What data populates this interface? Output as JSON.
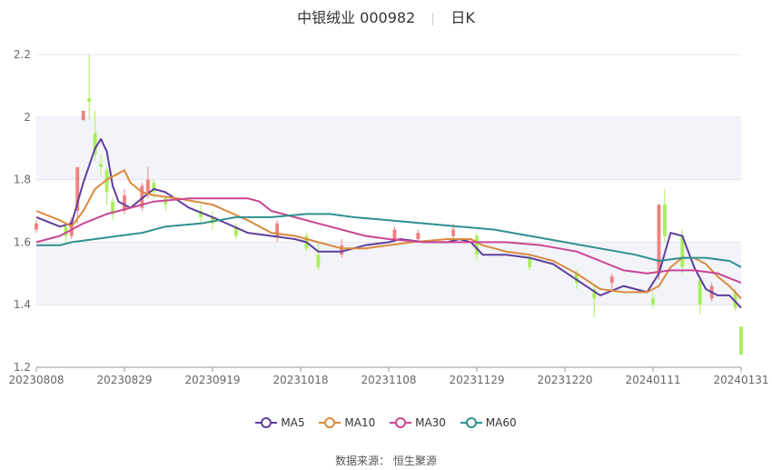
{
  "title": {
    "name": "中银绒业 000982",
    "period": "日K"
  },
  "source": "数据来源： 恒生聚源",
  "colors": {
    "up": "#f08080",
    "down": "#a8ef5c",
    "grid_band": "#f3f4fa"
  },
  "chart_data": {
    "type": "candlestick",
    "x_ticks": [
      "20230808",
      "20230829",
      "20230919",
      "20231018",
      "20231108",
      "20231129",
      "20231220",
      "20240111",
      "20240131"
    ],
    "ylim": [
      1.2,
      2.2
    ],
    "y_ticks": [
      1.2,
      1.4,
      1.6,
      1.8,
      2.0,
      2.2
    ],
    "y_tick_labels": [
      "1.2",
      "1.4",
      "1.6",
      "1.8",
      "2",
      "2.2"
    ],
    "n": 121,
    "candles_approx": [
      {
        "i": 0,
        "o": 1.64,
        "c": 1.66,
        "h": 1.67,
        "l": 1.63
      },
      {
        "i": 5,
        "o": 1.65,
        "c": 1.62,
        "h": 1.66,
        "l": 1.6
      },
      {
        "i": 6,
        "o": 1.62,
        "c": 1.67,
        "h": 1.68,
        "l": 1.61
      },
      {
        "i": 7,
        "o": 1.7,
        "c": 1.84,
        "h": 1.84,
        "l": 1.66
      },
      {
        "i": 8,
        "o": 1.99,
        "c": 2.02,
        "h": 2.02,
        "l": 1.99
      },
      {
        "i": 9,
        "o": 2.06,
        "c": 2.05,
        "h": 2.2,
        "l": 1.99
      },
      {
        "i": 10,
        "o": 1.95,
        "c": 1.88,
        "h": 2.02,
        "l": 1.86
      },
      {
        "i": 11,
        "o": 1.85,
        "c": 1.84,
        "h": 1.88,
        "l": 1.81
      },
      {
        "i": 12,
        "o": 1.83,
        "c": 1.76,
        "h": 1.84,
        "l": 1.72
      },
      {
        "i": 13,
        "o": 1.73,
        "c": 1.69,
        "h": 1.74,
        "l": 1.67
      },
      {
        "i": 15,
        "o": 1.7,
        "c": 1.75,
        "h": 1.77,
        "l": 1.69
      },
      {
        "i": 18,
        "o": 1.71,
        "c": 1.78,
        "h": 1.79,
        "l": 1.7
      },
      {
        "i": 19,
        "o": 1.76,
        "c": 1.8,
        "h": 1.84,
        "l": 1.74
      },
      {
        "i": 20,
        "o": 1.79,
        "c": 1.76,
        "h": 1.8,
        "l": 1.74
      },
      {
        "i": 22,
        "o": 1.74,
        "c": 1.72,
        "h": 1.75,
        "l": 1.7
      },
      {
        "i": 28,
        "o": 1.7,
        "c": 1.68,
        "h": 1.72,
        "l": 1.66
      },
      {
        "i": 30,
        "o": 1.68,
        "c": 1.66,
        "h": 1.7,
        "l": 1.64
      },
      {
        "i": 34,
        "o": 1.65,
        "c": 1.62,
        "h": 1.66,
        "l": 1.61
      },
      {
        "i": 41,
        "o": 1.62,
        "c": 1.66,
        "h": 1.67,
        "l": 1.6
      },
      {
        "i": 46,
        "o": 1.62,
        "c": 1.58,
        "h": 1.63,
        "l": 1.57
      },
      {
        "i": 48,
        "o": 1.56,
        "c": 1.52,
        "h": 1.6,
        "l": 1.51
      },
      {
        "i": 52,
        "o": 1.56,
        "c": 1.59,
        "h": 1.61,
        "l": 1.55
      },
      {
        "i": 61,
        "o": 1.61,
        "c": 1.64,
        "h": 1.65,
        "l": 1.6
      },
      {
        "i": 65,
        "o": 1.61,
        "c": 1.63,
        "h": 1.64,
        "l": 1.6
      },
      {
        "i": 71,
        "o": 1.62,
        "c": 1.64,
        "h": 1.66,
        "l": 1.61
      },
      {
        "i": 75,
        "o": 1.62,
        "c": 1.56,
        "h": 1.63,
        "l": 1.54
      },
      {
        "i": 84,
        "o": 1.55,
        "c": 1.52,
        "h": 1.56,
        "l": 1.51
      },
      {
        "i": 92,
        "o": 1.5,
        "c": 1.47,
        "h": 1.51,
        "l": 1.45
      },
      {
        "i": 95,
        "o": 1.45,
        "c": 1.42,
        "h": 1.46,
        "l": 1.36
      },
      {
        "i": 98,
        "o": 1.47,
        "c": 1.49,
        "h": 1.5,
        "l": 1.45
      },
      {
        "i": 105,
        "o": 1.42,
        "c": 1.4,
        "h": 1.44,
        "l": 1.39
      },
      {
        "i": 106,
        "o": 1.5,
        "c": 1.72,
        "h": 1.72,
        "l": 1.48
      },
      {
        "i": 107,
        "o": 1.72,
        "c": 1.62,
        "h": 1.77,
        "l": 1.6
      },
      {
        "i": 110,
        "o": 1.62,
        "c": 1.52,
        "h": 1.64,
        "l": 1.5
      },
      {
        "i": 113,
        "o": 1.48,
        "c": 1.4,
        "h": 1.49,
        "l": 1.37
      },
      {
        "i": 115,
        "o": 1.42,
        "c": 1.46,
        "h": 1.47,
        "l": 1.41
      },
      {
        "i": 119,
        "o": 1.44,
        "c": 1.39,
        "h": 1.45,
        "l": 1.38
      },
      {
        "i": 120,
        "o": 1.33,
        "c": 1.24,
        "h": 1.33,
        "l": 1.24
      }
    ],
    "series": [
      {
        "name": "MA5",
        "color": "#5e3f9c",
        "points": [
          [
            0,
            1.68
          ],
          [
            4,
            1.65
          ],
          [
            6,
            1.66
          ],
          [
            8,
            1.79
          ],
          [
            10,
            1.9
          ],
          [
            11,
            1.93
          ],
          [
            12,
            1.89
          ],
          [
            13,
            1.78
          ],
          [
            14,
            1.73
          ],
          [
            16,
            1.71
          ],
          [
            18,
            1.74
          ],
          [
            20,
            1.77
          ],
          [
            22,
            1.76
          ],
          [
            26,
            1.71
          ],
          [
            30,
            1.68
          ],
          [
            36,
            1.63
          ],
          [
            40,
            1.62
          ],
          [
            44,
            1.61
          ],
          [
            46,
            1.6
          ],
          [
            48,
            1.57
          ],
          [
            52,
            1.57
          ],
          [
            56,
            1.59
          ],
          [
            60,
            1.6
          ],
          [
            62,
            1.61
          ],
          [
            66,
            1.6
          ],
          [
            70,
            1.6
          ],
          [
            72,
            1.61
          ],
          [
            74,
            1.6
          ],
          [
            76,
            1.56
          ],
          [
            80,
            1.56
          ],
          [
            84,
            1.55
          ],
          [
            88,
            1.53
          ],
          [
            92,
            1.48
          ],
          [
            96,
            1.43
          ],
          [
            100,
            1.46
          ],
          [
            104,
            1.44
          ],
          [
            106,
            1.5
          ],
          [
            108,
            1.63
          ],
          [
            110,
            1.62
          ],
          [
            112,
            1.52
          ],
          [
            114,
            1.45
          ],
          [
            116,
            1.43
          ],
          [
            118,
            1.43
          ],
          [
            120,
            1.39
          ]
        ]
      },
      {
        "name": "MA10",
        "color": "#d98a3c",
        "points": [
          [
            0,
            1.7
          ],
          [
            4,
            1.67
          ],
          [
            6,
            1.65
          ],
          [
            8,
            1.7
          ],
          [
            10,
            1.77
          ],
          [
            12,
            1.8
          ],
          [
            14,
            1.82
          ],
          [
            15,
            1.83
          ],
          [
            16,
            1.79
          ],
          [
            18,
            1.76
          ],
          [
            20,
            1.75
          ],
          [
            24,
            1.74
          ],
          [
            30,
            1.72
          ],
          [
            36,
            1.67
          ],
          [
            40,
            1.63
          ],
          [
            44,
            1.62
          ],
          [
            48,
            1.6
          ],
          [
            52,
            1.58
          ],
          [
            56,
            1.58
          ],
          [
            60,
            1.59
          ],
          [
            64,
            1.6
          ],
          [
            70,
            1.61
          ],
          [
            74,
            1.61
          ],
          [
            76,
            1.59
          ],
          [
            80,
            1.57
          ],
          [
            84,
            1.56
          ],
          [
            88,
            1.54
          ],
          [
            92,
            1.5
          ],
          [
            96,
            1.45
          ],
          [
            100,
            1.44
          ],
          [
            104,
            1.44
          ],
          [
            106,
            1.46
          ],
          [
            108,
            1.52
          ],
          [
            110,
            1.55
          ],
          [
            112,
            1.55
          ],
          [
            114,
            1.53
          ],
          [
            116,
            1.49
          ],
          [
            118,
            1.46
          ],
          [
            120,
            1.42
          ]
        ]
      },
      {
        "name": "MA30",
        "color": "#c94693",
        "points": [
          [
            0,
            1.6
          ],
          [
            4,
            1.62
          ],
          [
            8,
            1.66
          ],
          [
            12,
            1.69
          ],
          [
            16,
            1.71
          ],
          [
            20,
            1.73
          ],
          [
            26,
            1.74
          ],
          [
            32,
            1.74
          ],
          [
            36,
            1.74
          ],
          [
            38,
            1.73
          ],
          [
            40,
            1.7
          ],
          [
            44,
            1.68
          ],
          [
            48,
            1.66
          ],
          [
            52,
            1.64
          ],
          [
            56,
            1.62
          ],
          [
            60,
            1.61
          ],
          [
            66,
            1.6
          ],
          [
            74,
            1.6
          ],
          [
            80,
            1.6
          ],
          [
            86,
            1.59
          ],
          [
            92,
            1.57
          ],
          [
            96,
            1.54
          ],
          [
            100,
            1.51
          ],
          [
            104,
            1.5
          ],
          [
            108,
            1.51
          ],
          [
            112,
            1.51
          ],
          [
            116,
            1.5
          ],
          [
            120,
            1.47
          ]
        ]
      },
      {
        "name": "MA60",
        "color": "#2f8f8f",
        "points": [
          [
            0,
            1.59
          ],
          [
            4,
            1.59
          ],
          [
            6,
            1.6
          ],
          [
            10,
            1.61
          ],
          [
            14,
            1.62
          ],
          [
            18,
            1.63
          ],
          [
            22,
            1.65
          ],
          [
            28,
            1.66
          ],
          [
            34,
            1.68
          ],
          [
            40,
            1.68
          ],
          [
            46,
            1.69
          ],
          [
            50,
            1.69
          ],
          [
            54,
            1.68
          ],
          [
            60,
            1.67
          ],
          [
            66,
            1.66
          ],
          [
            72,
            1.65
          ],
          [
            78,
            1.64
          ],
          [
            84,
            1.62
          ],
          [
            90,
            1.6
          ],
          [
            96,
            1.58
          ],
          [
            102,
            1.56
          ],
          [
            106,
            1.54
          ],
          [
            110,
            1.55
          ],
          [
            114,
            1.55
          ],
          [
            118,
            1.54
          ],
          [
            120,
            1.52
          ]
        ]
      }
    ]
  }
}
